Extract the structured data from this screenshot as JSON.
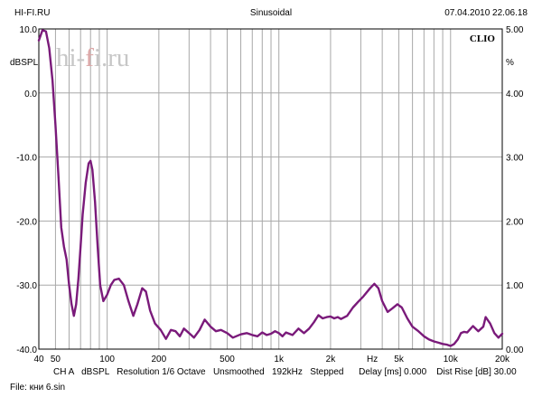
{
  "header": {
    "left": "HI-FI.RU",
    "center": "Sinusoidal",
    "right": "07.04.2010 22.06.18"
  },
  "watermark": {
    "prefix": "hi-",
    "accent": "f",
    "suffix": "i.ru"
  },
  "brand": "CLIO",
  "left_unit": "dBSPL",
  "right_unit": "%",
  "status_line": "CH A   dBSPL   Resolution 1/6 Octave   Unsmoothed   192kHz   Stepped      Delay [ms] 0.000    Dist Rise [dB] 30.00",
  "file_line": "File: кни 6.sin",
  "chart_data": {
    "type": "line",
    "title": "Sinusoidal",
    "xlabel": "Hz",
    "ylabel": "dBSPL",
    "y2label": "%",
    "xscale": "log",
    "xlim": [
      40,
      20000
    ],
    "ylim": [
      -40,
      10
    ],
    "y2lim": [
      0,
      5
    ],
    "grid": true,
    "x_tick_labels": [
      {
        "v": 40,
        "t": "40"
      },
      {
        "v": 50,
        "t": "50"
      },
      {
        "v": 100,
        "t": "100"
      },
      {
        "v": 200,
        "t": "200"
      },
      {
        "v": 500,
        "t": "500"
      },
      {
        "v": 1000,
        "t": "1k"
      },
      {
        "v": 2000,
        "t": "2k"
      },
      {
        "v": 3500,
        "t": "Hz"
      },
      {
        "v": 5000,
        "t": "5k"
      },
      {
        "v": 10000,
        "t": "10k"
      },
      {
        "v": 20000,
        "t": "20k"
      }
    ],
    "y_tick_labels": [
      {
        "v": 10,
        "t": "10.0"
      },
      {
        "v": 0,
        "t": "0.0"
      },
      {
        "v": -10,
        "t": "-10.0"
      },
      {
        "v": -20,
        "t": "-20.0"
      },
      {
        "v": -30,
        "t": "-30.0"
      },
      {
        "v": -40,
        "t": "-40.0"
      }
    ],
    "y2_tick_labels": [
      {
        "v": 5,
        "t": "5.00"
      },
      {
        "v": 4,
        "t": "4.00"
      },
      {
        "v": 3,
        "t": "3.00"
      },
      {
        "v": 2,
        "t": "2.00"
      },
      {
        "v": 1,
        "t": "1.00"
      },
      {
        "v": 0,
        "t": "0.00"
      }
    ],
    "series": [
      {
        "color": "#7a1a7a",
        "points": [
          [
            40,
            8.2
          ],
          [
            42,
            9.8
          ],
          [
            44,
            9.6
          ],
          [
            46,
            7.0
          ],
          [
            48,
            2.0
          ],
          [
            50,
            -5.0
          ],
          [
            52,
            -13.0
          ],
          [
            54,
            -21.0
          ],
          [
            56,
            -24.0
          ],
          [
            58,
            -26.0
          ],
          [
            60,
            -30.0
          ],
          [
            62,
            -33.0
          ],
          [
            64,
            -34.8
          ],
          [
            66,
            -33.0
          ],
          [
            68,
            -29.0
          ],
          [
            70,
            -24.0
          ],
          [
            72,
            -19.0
          ],
          [
            75,
            -14.0
          ],
          [
            78,
            -11.0
          ],
          [
            80,
            -10.6
          ],
          [
            82,
            -12.0
          ],
          [
            85,
            -17.0
          ],
          [
            88,
            -24.0
          ],
          [
            91,
            -30.0
          ],
          [
            95,
            -32.5
          ],
          [
            100,
            -31.5
          ],
          [
            105,
            -30.0
          ],
          [
            110,
            -29.2
          ],
          [
            117,
            -29.0
          ],
          [
            125,
            -30.0
          ],
          [
            133,
            -32.5
          ],
          [
            142,
            -34.8
          ],
          [
            150,
            -33.0
          ],
          [
            160,
            -30.5
          ],
          [
            168,
            -31.0
          ],
          [
            178,
            -34.0
          ],
          [
            190,
            -36.0
          ],
          [
            205,
            -37.0
          ],
          [
            220,
            -38.4
          ],
          [
            235,
            -37.0
          ],
          [
            250,
            -37.2
          ],
          [
            265,
            -38.0
          ],
          [
            280,
            -36.8
          ],
          [
            300,
            -37.5
          ],
          [
            320,
            -38.2
          ],
          [
            345,
            -37.0
          ],
          [
            370,
            -35.4
          ],
          [
            400,
            -36.5
          ],
          [
            430,
            -37.2
          ],
          [
            460,
            -37.0
          ],
          [
            500,
            -37.5
          ],
          [
            540,
            -38.2
          ],
          [
            600,
            -37.7
          ],
          [
            650,
            -37.5
          ],
          [
            700,
            -37.8
          ],
          [
            750,
            -38.0
          ],
          [
            800,
            -37.4
          ],
          [
            850,
            -37.8
          ],
          [
            900,
            -37.6
          ],
          [
            950,
            -37.2
          ],
          [
            1000,
            -37.5
          ],
          [
            1050,
            -38.0
          ],
          [
            1100,
            -37.4
          ],
          [
            1200,
            -37.8
          ],
          [
            1300,
            -36.8
          ],
          [
            1400,
            -37.5
          ],
          [
            1500,
            -36.8
          ],
          [
            1600,
            -35.8
          ],
          [
            1700,
            -34.7
          ],
          [
            1800,
            -35.2
          ],
          [
            1900,
            -35.0
          ],
          [
            2000,
            -34.9
          ],
          [
            2100,
            -35.2
          ],
          [
            2200,
            -35.0
          ],
          [
            2300,
            -35.3
          ],
          [
            2500,
            -34.8
          ],
          [
            2700,
            -33.5
          ],
          [
            2900,
            -32.6
          ],
          [
            3100,
            -31.8
          ],
          [
            3400,
            -30.5
          ],
          [
            3600,
            -29.8
          ],
          [
            3800,
            -30.5
          ],
          [
            4000,
            -32.5
          ],
          [
            4300,
            -34.2
          ],
          [
            4600,
            -33.6
          ],
          [
            4900,
            -33.0
          ],
          [
            5200,
            -33.5
          ],
          [
            5600,
            -35.2
          ],
          [
            6000,
            -36.5
          ],
          [
            6500,
            -37.2
          ],
          [
            7000,
            -38.0
          ],
          [
            7500,
            -38.5
          ],
          [
            8000,
            -38.8
          ],
          [
            8500,
            -39.0
          ],
          [
            9000,
            -39.2
          ],
          [
            9500,
            -39.3
          ],
          [
            10000,
            -39.5
          ],
          [
            10500,
            -39.2
          ],
          [
            11000,
            -38.5
          ],
          [
            11500,
            -37.5
          ],
          [
            12000,
            -37.3
          ],
          [
            12500,
            -37.4
          ],
          [
            13500,
            -36.4
          ],
          [
            14500,
            -37.2
          ],
          [
            15500,
            -36.5
          ],
          [
            16000,
            -35.0
          ],
          [
            17000,
            -36.0
          ],
          [
            18000,
            -37.5
          ],
          [
            19000,
            -38.2
          ],
          [
            20000,
            -37.6
          ]
        ]
      }
    ]
  }
}
